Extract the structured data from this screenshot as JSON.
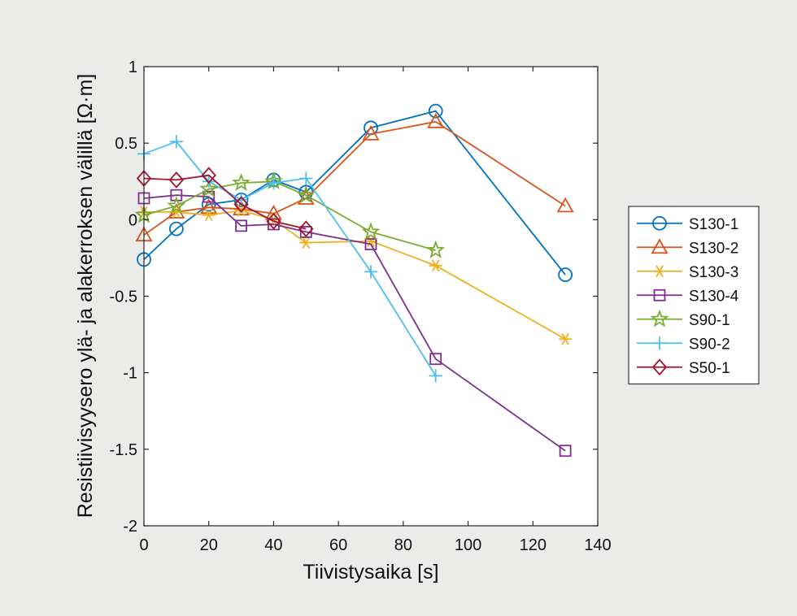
{
  "chart_data": {
    "type": "line",
    "title": "",
    "xlabel": "Tiivistysaika [s]",
    "ylabel": "Resistiivisyysero ylä- ja alakerroksen välillä [Ω·m]",
    "xlim": [
      0,
      140
    ],
    "ylim": [
      -2,
      1
    ],
    "xticks": [
      0,
      20,
      40,
      60,
      80,
      100,
      120,
      140
    ],
    "xtick_labels": [
      "0",
      "20",
      "40",
      "60",
      "80",
      "100",
      "120",
      "140"
    ],
    "yticks": [
      1,
      0.5,
      0,
      -0.5,
      -1,
      -1.5,
      -2
    ],
    "ytick_labels": [
      "1",
      "0.5",
      "0",
      "-0.5",
      "-1",
      "-1.5",
      "-2"
    ],
    "grid": false,
    "legend_position": "right",
    "series": [
      {
        "name": "S130-1",
        "color": "#0072BD",
        "marker": "circle",
        "x": [
          0,
          10,
          20,
          30,
          40,
          50,
          70,
          90,
          130
        ],
        "y": [
          -0.26,
          -0.06,
          0.1,
          0.13,
          0.26,
          0.18,
          0.6,
          0.71,
          -0.36
        ]
      },
      {
        "name": "S130-2",
        "color": "#D95319",
        "marker": "triangle",
        "x": [
          0,
          10,
          20,
          30,
          40,
          50,
          70,
          90,
          130
        ],
        "y": [
          -0.1,
          0.05,
          0.08,
          0.07,
          0.04,
          0.14,
          0.56,
          0.64,
          0.09
        ]
      },
      {
        "name": "S130-3",
        "color": "#EDB120",
        "marker": "asterisk",
        "x": [
          0,
          10,
          20,
          30,
          40,
          50,
          70,
          90,
          130
        ],
        "y": [
          0.05,
          0.05,
          0.03,
          0.06,
          0.0,
          -0.15,
          -0.14,
          -0.3,
          -0.78
        ]
      },
      {
        "name": "S130-4",
        "color": "#7E2F8E",
        "marker": "square",
        "x": [
          0,
          10,
          20,
          30,
          40,
          50,
          70,
          90,
          130
        ],
        "y": [
          0.14,
          0.16,
          0.15,
          -0.04,
          -0.03,
          -0.08,
          -0.16,
          -0.91,
          -1.51
        ]
      },
      {
        "name": "S90-1",
        "color": "#77AC30",
        "marker": "pentagram",
        "x": [
          0,
          10,
          20,
          30,
          40,
          50,
          70,
          90
        ],
        "y": [
          0.03,
          0.09,
          0.2,
          0.24,
          0.25,
          0.16,
          -0.08,
          -0.2
        ]
      },
      {
        "name": "S90-2",
        "color": "#4DBEEE",
        "marker": "plus",
        "x": [
          0,
          10,
          20,
          30,
          40,
          50,
          70,
          90
        ],
        "y": [
          0.43,
          0.51,
          0.25,
          0.13,
          0.24,
          0.27,
          -0.34,
          -1.02
        ]
      },
      {
        "name": "S50-1",
        "color": "#A2142F",
        "marker": "diamond",
        "x": [
          0,
          10,
          20,
          30,
          40,
          50
        ],
        "y": [
          0.27,
          0.26,
          0.29,
          0.1,
          -0.01,
          -0.06
        ]
      }
    ]
  }
}
